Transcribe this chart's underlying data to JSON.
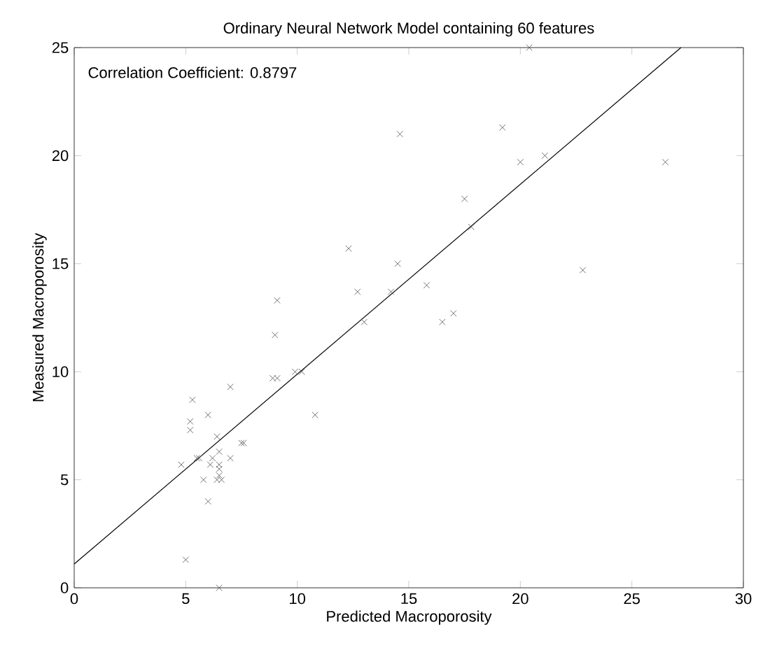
{
  "chart_data": {
    "type": "scatter",
    "title": "Ordinary Neural Network Model containing 60 features",
    "xlabel": "Predicted Macroporosity",
    "ylabel": "Measured Macroporosity",
    "annotations": [
      "Correlation Coefficient: 0.8797"
    ],
    "xlim": [
      0,
      30
    ],
    "ylim": [
      0,
      25
    ],
    "xticks": [
      0,
      5,
      10,
      15,
      20,
      25,
      30
    ],
    "yticks": [
      0,
      5,
      10,
      15,
      20,
      25
    ],
    "grid": false,
    "marker": "cross",
    "series": [
      {
        "color": "#505050",
        "x": [
          5,
          6.5,
          4.8,
          5.2,
          5.2,
          5.3,
          5.5,
          5.6,
          5.8,
          6,
          6,
          6.1,
          6.2,
          6.4,
          6.5,
          6.5,
          6.5,
          6.5,
          6.4,
          6.6,
          7,
          7,
          7.5,
          7.6,
          8.9,
          9.1,
          9,
          9.1,
          9.9,
          10.2,
          10.8,
          12.3,
          12.7,
          13,
          14.2,
          14.5,
          14.6,
          15.8,
          16.5,
          17,
          17.5,
          17.8,
          19.2,
          20,
          20.4,
          21.1,
          22.8,
          26.5
        ],
        "values": [
          1.3,
          0,
          5.7,
          7.7,
          7.3,
          8.7,
          6,
          6,
          5,
          8,
          4,
          5.7,
          6,
          7,
          6.3,
          5.7,
          5.5,
          5.2,
          5,
          5,
          6,
          9.3,
          6.7,
          6.7,
          9.7,
          9.7,
          11.7,
          13.3,
          10,
          10,
          8,
          15.7,
          13.7,
          12.3,
          13.7,
          15,
          21,
          14,
          12.3,
          12.7,
          18,
          16.7,
          21.3,
          19.7,
          25,
          20,
          14.7,
          19.7
        ]
      },
      {
        "type": "line",
        "color": "#000000",
        "marker": "none",
        "x": [
          0,
          27.2
        ],
        "values": [
          1.1,
          25
        ]
      }
    ]
  }
}
